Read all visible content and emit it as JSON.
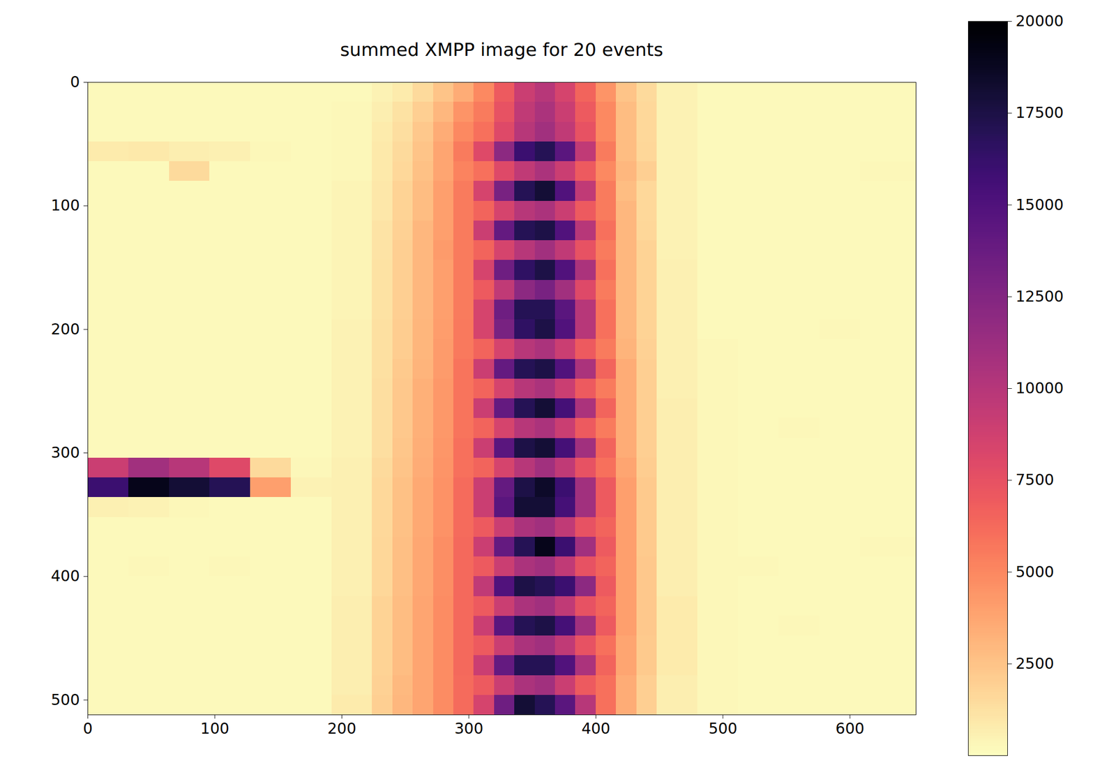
{
  "chart_data": {
    "type": "heatmap",
    "title": "summed XMPP image for 20 events",
    "color": "magma_r",
    "xlim": [
      0,
      652
    ],
    "ylim": [
      512,
      0
    ],
    "xticks": [
      0,
      100,
      200,
      300,
      400,
      500,
      600
    ],
    "yticks": [
      0,
      100,
      200,
      300,
      400,
      500
    ],
    "clim": [
      0,
      20000
    ],
    "cticks": [
      2500,
      5000,
      7500,
      10000,
      12500,
      15000,
      17500,
      20000
    ],
    "x_edges": [
      0,
      32,
      64,
      96,
      128,
      160,
      192,
      224,
      240,
      256,
      272,
      288,
      304,
      320,
      336,
      352,
      368,
      384,
      400,
      416,
      432,
      448,
      480,
      512,
      544,
      576,
      608,
      652
    ],
    "y_edges": [
      0,
      16,
      32,
      48,
      64,
      80,
      96,
      112,
      128,
      144,
      160,
      176,
      192,
      208,
      224,
      240,
      256,
      272,
      288,
      304,
      320,
      336,
      352,
      368,
      384,
      400,
      416,
      432,
      448,
      464,
      480,
      496,
      512
    ],
    "values": [
      [
        200,
        200,
        200,
        200,
        200,
        200,
        200,
        500,
        800,
        1500,
        2500,
        3500,
        5000,
        7000,
        9000,
        10000,
        8500,
        6500,
        4500,
        2500,
        1500,
        500,
        200,
        200,
        200,
        200,
        200
      ],
      [
        200,
        200,
        200,
        200,
        200,
        200,
        300,
        700,
        1200,
        2000,
        3000,
        4500,
        5500,
        7500,
        9500,
        10500,
        9000,
        7000,
        5000,
        2800,
        1600,
        500,
        200,
        200,
        200,
        200,
        200
      ],
      [
        200,
        200,
        200,
        200,
        200,
        200,
        300,
        800,
        1400,
        2300,
        3500,
        5000,
        6000,
        8000,
        10000,
        11000,
        9500,
        7500,
        5000,
        2800,
        1600,
        500,
        200,
        200,
        200,
        200,
        200
      ],
      [
        800,
        900,
        700,
        600,
        300,
        200,
        300,
        900,
        1500,
        2500,
        3800,
        5500,
        8000,
        12000,
        16000,
        17000,
        14500,
        9500,
        5500,
        2800,
        1700,
        500,
        200,
        200,
        200,
        200,
        200
      ],
      [
        200,
        200,
        1500,
        200,
        200,
        200,
        300,
        900,
        1600,
        2600,
        3800,
        5200,
        6000,
        8000,
        9500,
        10500,
        9000,
        7000,
        5000,
        3000,
        2000,
        500,
        200,
        200,
        200,
        200,
        300
      ],
      [
        200,
        200,
        200,
        200,
        200,
        200,
        400,
        1000,
        1800,
        2800,
        4000,
        5500,
        8500,
        13000,
        17000,
        18000,
        15000,
        9500,
        5500,
        2800,
        1600,
        500,
        200,
        200,
        200,
        200,
        200
      ],
      [
        200,
        200,
        200,
        200,
        200,
        200,
        400,
        1000,
        1800,
        2800,
        4000,
        5500,
        6500,
        8500,
        10000,
        10500,
        9000,
        7000,
        5500,
        3000,
        1600,
        500,
        200,
        200,
        200,
        200,
        200
      ],
      [
        200,
        200,
        200,
        200,
        200,
        200,
        400,
        1100,
        1900,
        3000,
        4000,
        5500,
        9000,
        14000,
        17000,
        17500,
        15000,
        10000,
        6000,
        3000,
        1700,
        500,
        200,
        200,
        200,
        200,
        200
      ],
      [
        200,
        200,
        200,
        200,
        200,
        200,
        400,
        1100,
        2000,
        3000,
        4200,
        5500,
        6500,
        8500,
        10000,
        11000,
        9500,
        7500,
        5500,
        3000,
        1800,
        500,
        200,
        200,
        200,
        200,
        200
      ],
      [
        200,
        200,
        200,
        200,
        200,
        200,
        400,
        1200,
        2000,
        3000,
        4000,
        5500,
        8500,
        13500,
        16500,
        17500,
        15000,
        10500,
        6000,
        3000,
        1800,
        600,
        200,
        200,
        200,
        200,
        200
      ],
      [
        200,
        200,
        200,
        200,
        200,
        200,
        400,
        1200,
        2000,
        3000,
        4000,
        5500,
        7000,
        9500,
        12000,
        13000,
        11000,
        8000,
        5500,
        3000,
        1800,
        600,
        200,
        200,
        200,
        200,
        200
      ],
      [
        200,
        200,
        200,
        200,
        200,
        200,
        400,
        1200,
        2000,
        3000,
        4000,
        5500,
        8500,
        13500,
        17000,
        17000,
        14500,
        10000,
        6000,
        3000,
        1800,
        600,
        200,
        200,
        200,
        200,
        200
      ],
      [
        200,
        200,
        200,
        200,
        200,
        200,
        500,
        1300,
        2100,
        3100,
        4100,
        5600,
        8500,
        13000,
        16500,
        17500,
        15000,
        10000,
        6000,
        3000,
        1800,
        600,
        200,
        200,
        200,
        300,
        200
      ],
      [
        200,
        200,
        200,
        200,
        200,
        200,
        500,
        1300,
        2100,
        3100,
        4200,
        5600,
        6500,
        8500,
        10000,
        10500,
        9000,
        7000,
        5500,
        3200,
        1900,
        600,
        300,
        200,
        200,
        200,
        200
      ],
      [
        200,
        200,
        200,
        200,
        200,
        200,
        500,
        1300,
        2200,
        3200,
        4200,
        5800,
        9000,
        14000,
        17000,
        17500,
        15000,
        10500,
        6500,
        3500,
        2000,
        600,
        300,
        200,
        200,
        200,
        200
      ],
      [
        200,
        200,
        200,
        200,
        200,
        200,
        500,
        1400,
        2300,
        3300,
        4300,
        5800,
        6500,
        8500,
        10000,
        10500,
        9000,
        7000,
        5500,
        3500,
        2000,
        600,
        300,
        200,
        200,
        200,
        200
      ],
      [
        200,
        200,
        200,
        200,
        200,
        200,
        500,
        1400,
        2300,
        3300,
        4300,
        5800,
        9000,
        14000,
        17000,
        18000,
        15500,
        10500,
        6500,
        3500,
        2000,
        700,
        300,
        200,
        200,
        200,
        200
      ],
      [
        200,
        200,
        200,
        200,
        200,
        200,
        500,
        1400,
        2300,
        3300,
        4300,
        5800,
        6500,
        8500,
        10000,
        10500,
        9000,
        7000,
        5500,
        3500,
        2000,
        700,
        300,
        200,
        300,
        200,
        200
      ],
      [
        200,
        200,
        200,
        200,
        200,
        200,
        500,
        1400,
        2400,
        3400,
        4400,
        6000,
        9000,
        14500,
        17500,
        18000,
        15500,
        11000,
        6500,
        3500,
        2000,
        700,
        300,
        200,
        200,
        200,
        200
      ],
      [
        9000,
        11000,
        10000,
        8000,
        1500,
        300,
        600,
        1500,
        2500,
        3500,
        4500,
        6000,
        6500,
        8500,
        10000,
        11000,
        9500,
        7500,
        6000,
        3800,
        2100,
        700,
        300,
        200,
        200,
        200,
        200
      ],
      [
        16000,
        19000,
        18000,
        17000,
        4000,
        500,
        600,
        1600,
        2600,
        3600,
        4600,
        6200,
        9000,
        14000,
        17500,
        18500,
        16000,
        11000,
        7000,
        4000,
        2200,
        700,
        300,
        200,
        200,
        200,
        200
      ],
      [
        600,
        500,
        300,
        200,
        200,
        200,
        600,
        1600,
        2600,
        3600,
        4600,
        6200,
        9000,
        14500,
        18000,
        18000,
        15500,
        11000,
        7000,
        4000,
        2200,
        700,
        300,
        200,
        200,
        200,
        200
      ],
      [
        200,
        200,
        200,
        200,
        200,
        200,
        600,
        1600,
        2600,
        3600,
        4600,
        6200,
        7000,
        9000,
        10500,
        11000,
        9500,
        7500,
        6500,
        4000,
        2200,
        700,
        300,
        200,
        200,
        200,
        200
      ],
      [
        200,
        200,
        200,
        200,
        200,
        200,
        600,
        1700,
        2700,
        3700,
        4700,
        6300,
        9000,
        14000,
        17000,
        19000,
        16000,
        11000,
        7000,
        4000,
        2200,
        700,
        300,
        200,
        200,
        200,
        300
      ],
      [
        200,
        300,
        200,
        300,
        200,
        200,
        600,
        1700,
        2700,
        3700,
        4700,
        6300,
        7000,
        9000,
        10500,
        11000,
        9500,
        7500,
        6500,
        4000,
        2300,
        700,
        300,
        300,
        200,
        200,
        200
      ],
      [
        200,
        200,
        200,
        200,
        200,
        200,
        600,
        1700,
        2700,
        3700,
        4700,
        6300,
        9500,
        15000,
        17500,
        17000,
        16000,
        12000,
        7000,
        4000,
        2300,
        700,
        300,
        200,
        200,
        200,
        200
      ],
      [
        200,
        200,
        200,
        200,
        200,
        200,
        700,
        1800,
        2800,
        3800,
        4800,
        6300,
        7000,
        9000,
        10500,
        11000,
        9500,
        7500,
        6500,
        4000,
        2300,
        800,
        300,
        200,
        200,
        200,
        200
      ],
      [
        200,
        200,
        200,
        200,
        200,
        200,
        700,
        1800,
        2800,
        3800,
        4800,
        6300,
        9000,
        14500,
        17000,
        17500,
        15500,
        11000,
        7000,
        4000,
        2300,
        800,
        300,
        200,
        300,
        200,
        200
      ],
      [
        200,
        200,
        200,
        200,
        200,
        200,
        700,
        1800,
        2800,
        3800,
        4800,
        6300,
        7000,
        9000,
        10500,
        11000,
        9500,
        7500,
        6000,
        3800,
        2200,
        800,
        300,
        200,
        200,
        200,
        200
      ],
      [
        200,
        200,
        200,
        200,
        200,
        200,
        700,
        1800,
        2800,
        3800,
        4800,
        6300,
        9000,
        14000,
        17000,
        17000,
        15000,
        10500,
        6500,
        3800,
        2200,
        800,
        300,
        200,
        200,
        200,
        200
      ],
      [
        200,
        200,
        200,
        200,
        200,
        200,
        700,
        1900,
        2900,
        3800,
        4800,
        6200,
        7000,
        9000,
        10500,
        11000,
        9000,
        7000,
        6000,
        3500,
        2000,
        700,
        300,
        200,
        200,
        200,
        200
      ],
      [
        200,
        200,
        200,
        200,
        200,
        200,
        800,
        2000,
        3000,
        3800,
        4800,
        6200,
        8500,
        13500,
        18000,
        17000,
        14500,
        10000,
        6000,
        3500,
        2000,
        700,
        300,
        200,
        200,
        200,
        200
      ]
    ]
  }
}
